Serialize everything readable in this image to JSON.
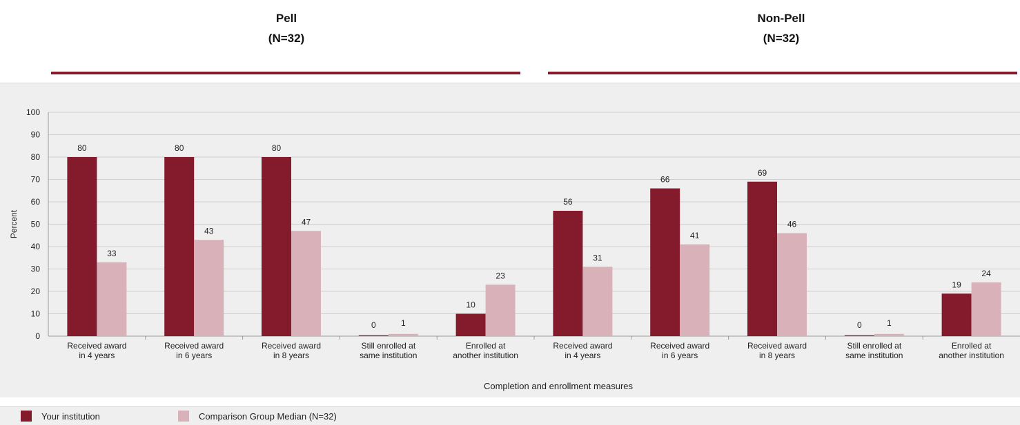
{
  "groups": [
    {
      "title": "Pell",
      "subtitle": "(N=32)"
    },
    {
      "title": "Non-Pell",
      "subtitle": "(N=32)"
    }
  ],
  "colors": {
    "institution": "#841b2d",
    "comparison": "#d9b2b9",
    "rule": "#841b2d",
    "grid": "#cfcfcf",
    "panel": "#efefef"
  },
  "legend": {
    "institution": "Your institution",
    "comparison": "Comparison Group Median (N=32)"
  },
  "chart_data": {
    "type": "bar",
    "ylabel": "Percent",
    "xlabel": "Completion and enrollment measures",
    "ylim": [
      0,
      100
    ],
    "yticks": [
      0,
      10,
      20,
      30,
      40,
      50,
      60,
      70,
      80,
      90,
      100
    ],
    "grid": true,
    "legend_position": "bottom-left",
    "categories": [
      [
        "Received award",
        "in 4 years"
      ],
      [
        "Received award",
        "in 6 years"
      ],
      [
        "Received award",
        "in 8 years"
      ],
      [
        "Still enrolled at",
        "same institution"
      ],
      [
        "Enrolled at",
        "another institution"
      ],
      [
        "Received award",
        "in 4 years"
      ],
      [
        "Received award",
        "in 6 years"
      ],
      [
        "Received award",
        "in 8 years"
      ],
      [
        "Still enrolled at",
        "same institution"
      ],
      [
        "Enrolled at",
        "another institution"
      ]
    ],
    "series": [
      {
        "name": "Your institution",
        "values": [
          80,
          80,
          80,
          0,
          10,
          56,
          66,
          69,
          0,
          19
        ]
      },
      {
        "name": "Comparison Group Median (N=32)",
        "values": [
          33,
          43,
          47,
          1,
          23,
          31,
          41,
          46,
          1,
          24
        ]
      }
    ]
  }
}
